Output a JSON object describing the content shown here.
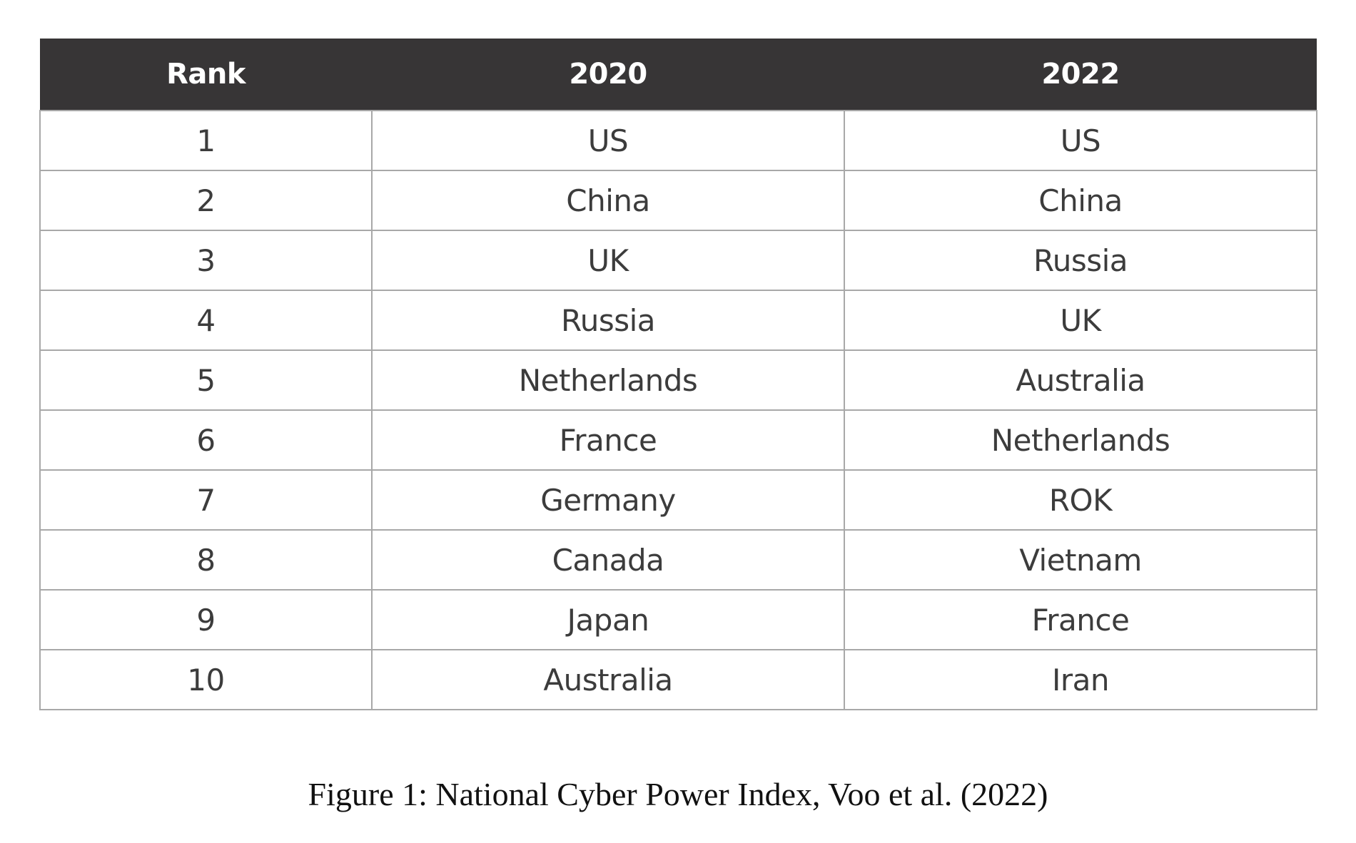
{
  "table": {
    "headers": [
      "Rank",
      "2020",
      "2022"
    ],
    "rows": [
      [
        "1",
        "US",
        "US"
      ],
      [
        "2",
        "China",
        "China"
      ],
      [
        "3",
        "UK",
        "Russia"
      ],
      [
        "4",
        "Russia",
        "UK"
      ],
      [
        "5",
        "Netherlands",
        "Australia"
      ],
      [
        "6",
        "France",
        "Netherlands"
      ],
      [
        "7",
        "Germany",
        "ROK"
      ],
      [
        "8",
        "Canada",
        "Vietnam"
      ],
      [
        "9",
        "Japan",
        "France"
      ],
      [
        "10",
        "Australia",
        "Iran"
      ]
    ]
  },
  "caption": "Figure 1: National Cyber Power Index, Voo et al. (2022)",
  "colors": {
    "header_background": "#373536",
    "header_text": "#ffffff",
    "cell_border": "#a8a8a8",
    "cell_text": "#3c3c3c"
  }
}
